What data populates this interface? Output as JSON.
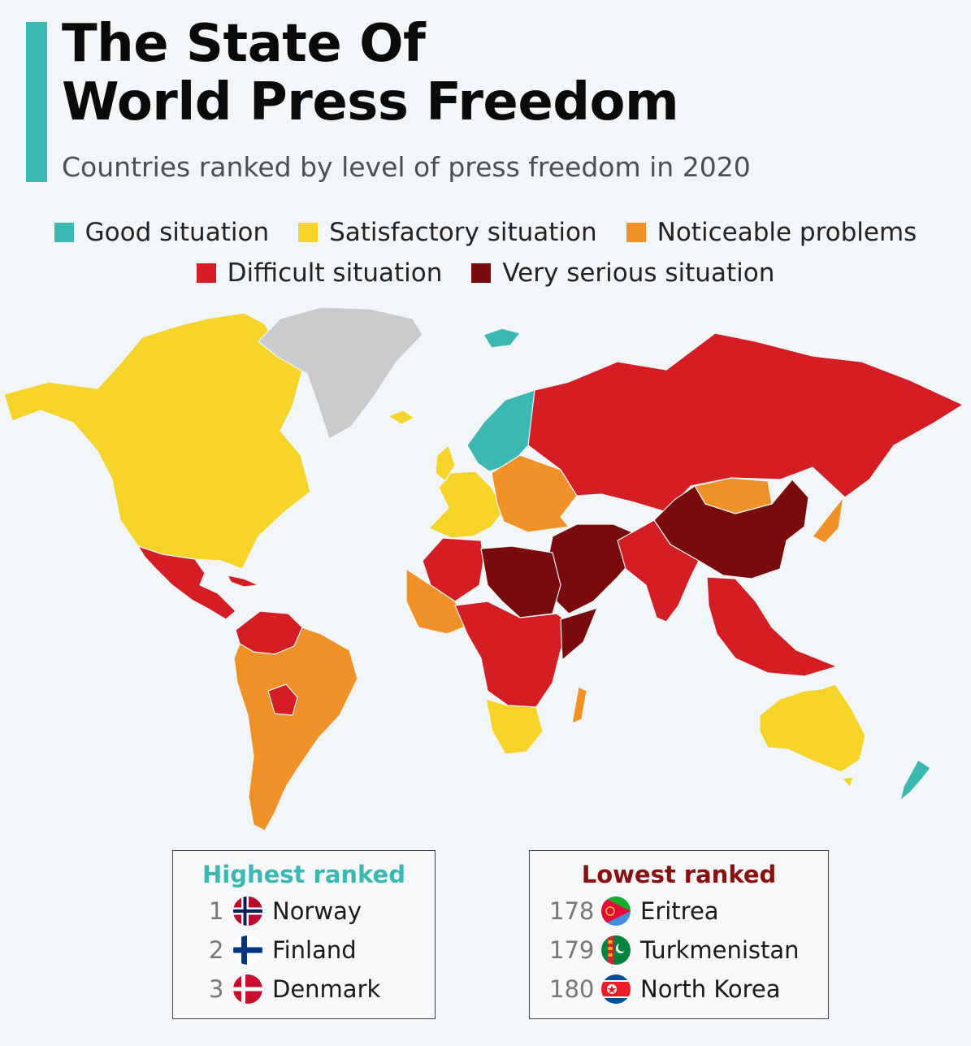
{
  "header": {
    "title_line1": "The State Of",
    "title_line2": "World Press Freedom",
    "subtitle": "Countries ranked by level of press freedom in 2020"
  },
  "colors": {
    "accent": "#3bb8b2",
    "good": "#3bb8b2",
    "satisfactory": "#f5d328",
    "noticeable": "#ef9127",
    "difficult": "#d51d24",
    "very_serious": "#7a0b0d",
    "no_data": "#c8cacc",
    "lowest_heading": "#8a1010"
  },
  "legend": [
    {
      "key": "good",
      "label": "Good situation"
    },
    {
      "key": "satisfactory",
      "label": "Satisfactory situation"
    },
    {
      "key": "noticeable",
      "label": "Noticeable problems"
    },
    {
      "key": "difficult",
      "label": "Difficult situation"
    },
    {
      "key": "very_serious",
      "label": "Very serious situation"
    }
  ],
  "highest_ranked": {
    "heading": "Highest ranked",
    "items": [
      {
        "rank": "1",
        "country": "Norway",
        "flag_icon": "norway-flag-icon"
      },
      {
        "rank": "2",
        "country": "Finland",
        "flag_icon": "finland-flag-icon"
      },
      {
        "rank": "3",
        "country": "Denmark",
        "flag_icon": "denmark-flag-icon"
      }
    ]
  },
  "lowest_ranked": {
    "heading": "Lowest ranked",
    "items": [
      {
        "rank": "178",
        "country": "Eritrea",
        "flag_icon": "eritrea-flag-icon"
      },
      {
        "rank": "179",
        "country": "Turkmenistan",
        "flag_icon": "turkmenistan-flag-icon"
      },
      {
        "rank": "180",
        "country": "North Korea",
        "flag_icon": "north-korea-flag-icon"
      }
    ]
  },
  "map": {
    "regions": [
      {
        "name": "north-america",
        "category": "satisfactory"
      },
      {
        "name": "greenland",
        "category": "no_data"
      },
      {
        "name": "mexico-central-america",
        "category": "difficult"
      },
      {
        "name": "south-america",
        "category": "noticeable"
      },
      {
        "name": "venezuela-colombia",
        "category": "difficult"
      },
      {
        "name": "western-europe",
        "category": "satisfactory"
      },
      {
        "name": "nordic-countries",
        "category": "good"
      },
      {
        "name": "eastern-europe",
        "category": "noticeable"
      },
      {
        "name": "russia",
        "category": "difficult"
      },
      {
        "name": "north-africa",
        "category": "difficult"
      },
      {
        "name": "libya-egypt",
        "category": "very_serious"
      },
      {
        "name": "west-africa",
        "category": "noticeable"
      },
      {
        "name": "central-africa",
        "category": "difficult"
      },
      {
        "name": "southern-africa",
        "category": "satisfactory"
      },
      {
        "name": "middle-east",
        "category": "very_serious"
      },
      {
        "name": "south-asia",
        "category": "difficult"
      },
      {
        "name": "china",
        "category": "very_serious"
      },
      {
        "name": "mongolia",
        "category": "noticeable"
      },
      {
        "name": "southeast-asia",
        "category": "difficult"
      },
      {
        "name": "japan",
        "category": "noticeable"
      },
      {
        "name": "australia",
        "category": "satisfactory"
      },
      {
        "name": "new-zealand",
        "category": "good"
      },
      {
        "name": "madagascar",
        "category": "noticeable"
      }
    ]
  }
}
